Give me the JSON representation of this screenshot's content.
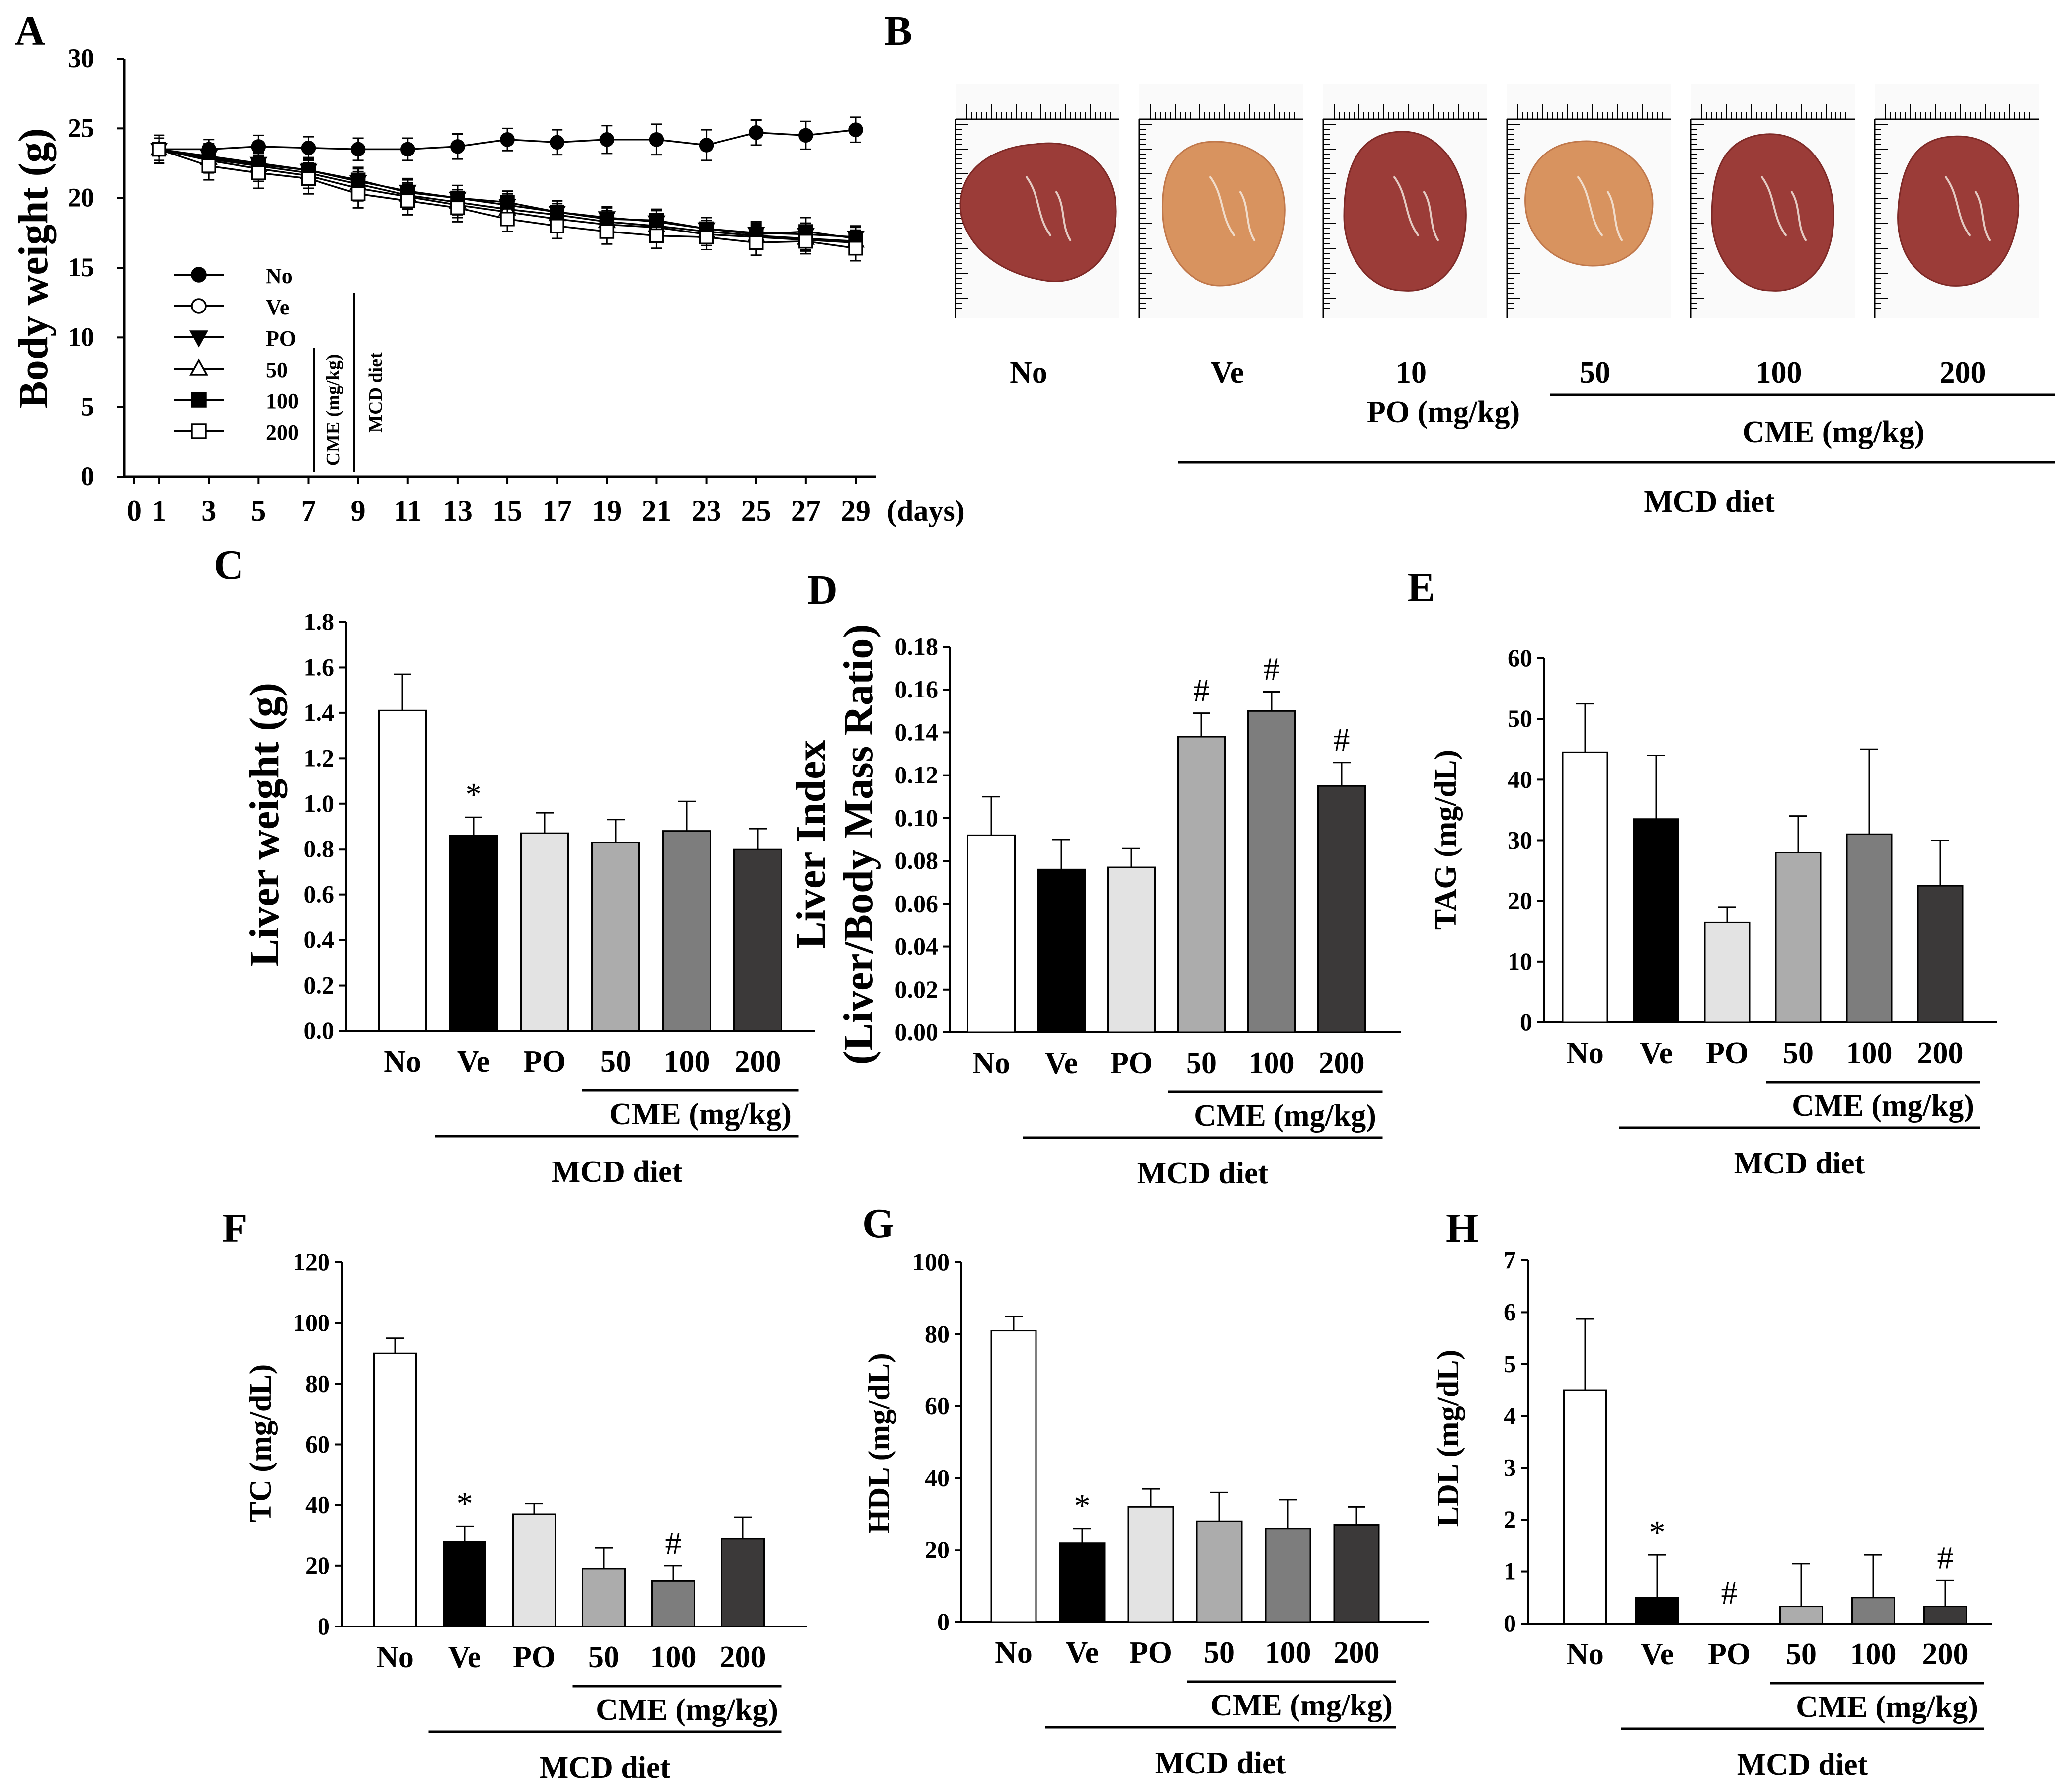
{
  "colors": {
    "No": "#ffffff",
    "Ve": "#000000",
    "PO": "#e3e3e3",
    "CME50": "#acacac",
    "CME100": "#7d7d7d",
    "CME200": "#3b3939",
    "liver_dark": "#9b3c38",
    "liver_pale": "#d8935f"
  },
  "panel_B": {
    "label": "B",
    "photos": [
      {
        "name": "No",
        "tone": "liver_dark"
      },
      {
        "name": "Ve",
        "tone": "liver_pale"
      },
      {
        "name": "10",
        "tone": "liver_dark"
      },
      {
        "name": "50",
        "tone": "liver_pale"
      },
      {
        "name": "100",
        "tone": "liver_dark"
      },
      {
        "name": "200",
        "tone": "liver_dark"
      }
    ],
    "po_group": "PO (mg/kg)",
    "cme_group": "CME (mg/kg)",
    "diet_group": "MCD diet"
  },
  "chart_data": [
    {
      "id": "A",
      "label": "A",
      "type": "line",
      "title": "",
      "xlabel": "(days)",
      "ylabel": "Body weight (g)",
      "ylim": [
        0,
        30
      ],
      "yticks": [
        0,
        5,
        10,
        15,
        20,
        25,
        30
      ],
      "xlim": [
        0,
        29
      ],
      "xticks": [
        0,
        1,
        3,
        5,
        7,
        9,
        11,
        13,
        15,
        17,
        19,
        21,
        23,
        25,
        27,
        29
      ],
      "x": [
        1,
        3,
        5,
        7,
        9,
        11,
        13,
        15,
        17,
        19,
        21,
        23,
        25,
        27,
        29
      ],
      "series": [
        {
          "name": "No",
          "marker": "circle-filled",
          "values": [
            23.5,
            23.5,
            23.7,
            23.6,
            23.5,
            23.5,
            23.7,
            24.2,
            24.0,
            24.2,
            24.2,
            23.8,
            24.7,
            24.5,
            24.9
          ],
          "errors": [
            0.8,
            0.7,
            0.8,
            0.8,
            0.8,
            0.8,
            0.9,
            0.8,
            0.9,
            1.0,
            1.1,
            1.1,
            0.9,
            1.0,
            0.9
          ]
        },
        {
          "name": "Ve",
          "marker": "circle-open",
          "values": [
            23.5,
            22.7,
            22.1,
            21.6,
            20.7,
            20.1,
            19.5,
            19.0,
            18.5,
            18.1,
            17.9,
            17.4,
            17.2,
            17.0,
            16.8
          ],
          "errors": [
            1.0,
            0.9,
            0.9,
            0.9,
            0.9,
            0.9,
            0.9,
            0.8,
            0.8,
            0.8,
            0.8,
            0.8,
            0.8,
            0.8,
            0.8
          ]
        },
        {
          "name": "PO",
          "marker": "triangle-down-filled",
          "values": [
            23.5,
            23.0,
            22.5,
            22.0,
            21.2,
            20.5,
            20.0,
            19.5,
            19.0,
            18.6,
            18.3,
            17.8,
            17.5,
            17.4,
            17.2
          ],
          "errors": [
            1.0,
            0.9,
            0.9,
            0.9,
            0.9,
            0.9,
            0.9,
            0.8,
            0.8,
            0.8,
            0.8,
            0.8,
            0.8,
            0.8,
            0.8
          ]
        },
        {
          "name": "50",
          "marker": "triangle-up-open",
          "values": [
            23.5,
            22.8,
            22.3,
            21.8,
            21.0,
            20.2,
            19.7,
            19.2,
            18.8,
            18.3,
            18.0,
            17.6,
            17.3,
            17.1,
            16.9
          ],
          "errors": [
            1.0,
            0.9,
            0.9,
            0.9,
            0.9,
            0.9,
            0.9,
            0.8,
            0.8,
            0.8,
            0.8,
            0.8,
            0.8,
            0.8,
            0.8
          ]
        },
        {
          "name": "100",
          "marker": "square-filled",
          "values": [
            23.5,
            22.9,
            22.4,
            22.0,
            21.3,
            20.4,
            20.0,
            19.7,
            19.0,
            18.5,
            18.4,
            17.8,
            17.4,
            17.6,
            17.1
          ],
          "errors": [
            1.0,
            0.9,
            0.9,
            0.9,
            0.9,
            0.9,
            0.9,
            0.8,
            0.8,
            0.8,
            0.8,
            0.8,
            0.8,
            1.0,
            0.8
          ]
        },
        {
          "name": "200",
          "marker": "square-open",
          "values": [
            23.5,
            22.3,
            21.8,
            21.4,
            20.3,
            19.8,
            19.3,
            18.5,
            18.0,
            17.6,
            17.3,
            17.2,
            16.8,
            16.9,
            16.4
          ],
          "errors": [
            1.0,
            1.0,
            1.1,
            1.1,
            1.0,
            1.0,
            1.0,
            0.9,
            0.9,
            0.9,
            0.9,
            0.9,
            0.9,
            0.9,
            0.9
          ]
        }
      ],
      "legend": [
        "No",
        "Ve",
        "PO",
        "50",
        "100",
        "200"
      ],
      "cme_group": "CME (mg/kg)",
      "diet_group": "MCD diet"
    },
    {
      "id": "C",
      "label": "C",
      "type": "bar",
      "ylabel": "Liver weight (g)",
      "ylim": [
        0,
        1.8
      ],
      "yticks": [
        "0.0",
        "0.2",
        "0.4",
        "0.6",
        "0.8",
        "1.0",
        "1.2",
        "1.4",
        "1.6",
        "1.8"
      ],
      "categories": [
        "No",
        "Ve",
        "PO",
        "50",
        "100",
        "200"
      ],
      "values": [
        1.41,
        0.86,
        0.87,
        0.83,
        0.88,
        0.8
      ],
      "errors": [
        0.16,
        0.08,
        0.09,
        0.1,
        0.13,
        0.09
      ],
      "annotations": [
        "",
        "*",
        "",
        "",
        "",
        ""
      ],
      "cme_group": "CME (mg/kg)",
      "diet_group": "MCD diet"
    },
    {
      "id": "D",
      "label": "D",
      "type": "bar",
      "ylabel": "Liver Index",
      "ylabel2": "(Liver/Body Mass Ratio)",
      "ylim": [
        0,
        0.18
      ],
      "yticks": [
        "0.00",
        "0.02",
        "0.04",
        "0.06",
        "0.08",
        "0.10",
        "0.12",
        "0.14",
        "0.16",
        "0.18"
      ],
      "categories": [
        "No",
        "Ve",
        "PO",
        "50",
        "100",
        "200"
      ],
      "values": [
        0.092,
        0.076,
        0.077,
        0.138,
        0.15,
        0.115
      ],
      "errors": [
        0.018,
        0.014,
        0.009,
        0.011,
        0.009,
        0.011
      ],
      "annotations": [
        "",
        "",
        "",
        "#",
        "#",
        "#"
      ],
      "cme_group": "CME (mg/kg)",
      "diet_group": "MCD diet"
    },
    {
      "id": "E",
      "label": "E",
      "type": "bar",
      "ylabel": "TAG (mg/dL)",
      "ylim": [
        0,
        60
      ],
      "yticks": [
        "0",
        "10",
        "20",
        "30",
        "40",
        "50",
        "60"
      ],
      "categories": [
        "No",
        "Ve",
        "PO",
        "50",
        "100",
        "200"
      ],
      "values": [
        44.5,
        33.5,
        16.5,
        28.0,
        31.0,
        22.5
      ],
      "errors": [
        8.0,
        10.5,
        2.5,
        6.0,
        14.0,
        7.5
      ],
      "annotations": [
        "",
        "",
        "",
        "",
        "",
        ""
      ],
      "cme_group": "CME (mg/kg)",
      "diet_group": "MCD diet"
    },
    {
      "id": "F",
      "label": "F",
      "type": "bar",
      "ylabel": "TC (mg/dL)",
      "ylim": [
        0,
        120
      ],
      "yticks": [
        "0",
        "20",
        "40",
        "60",
        "80",
        "100",
        "120"
      ],
      "categories": [
        "No",
        "Ve",
        "PO",
        "50",
        "100",
        "200"
      ],
      "values": [
        90,
        28,
        37,
        19,
        15,
        29
      ],
      "errors": [
        5,
        5,
        3.5,
        7,
        5,
        7
      ],
      "annotations": [
        "",
        "*",
        "",
        "",
        "#",
        ""
      ],
      "cme_group": "CME (mg/kg)",
      "diet_group": "MCD diet"
    },
    {
      "id": "G",
      "label": "G",
      "type": "bar",
      "ylabel": "HDL (mg/dL)",
      "ylim": [
        0,
        100
      ],
      "yticks": [
        "0",
        "20",
        "40",
        "60",
        "80",
        "100"
      ],
      "categories": [
        "No",
        "Ve",
        "PO",
        "50",
        "100",
        "200"
      ],
      "values": [
        81,
        22,
        32,
        28,
        26,
        27
      ],
      "errors": [
        4,
        4,
        5,
        8,
        8,
        5
      ],
      "annotations": [
        "",
        "*",
        "",
        "",
        "",
        ""
      ],
      "cme_group": "CME (mg/kg)",
      "diet_group": "MCD diet"
    },
    {
      "id": "H",
      "label": "H",
      "type": "bar",
      "ylabel": "LDL (mg/dL)",
      "ylim": [
        0,
        7
      ],
      "yticks": [
        "0",
        "1",
        "2",
        "3",
        "4",
        "5",
        "6",
        "7"
      ],
      "categories": [
        "No",
        "Ve",
        "PO",
        "50",
        "100",
        "200"
      ],
      "values": [
        4.5,
        0.5,
        0,
        0.33,
        0.5,
        0.33
      ],
      "errors": [
        1.37,
        0.82,
        0,
        0.82,
        0.82,
        0.5
      ],
      "annotations": [
        "",
        "*",
        "#",
        "",
        "",
        "#"
      ],
      "cme_group": "CME (mg/kg)",
      "diet_group": "MCD diet"
    }
  ]
}
